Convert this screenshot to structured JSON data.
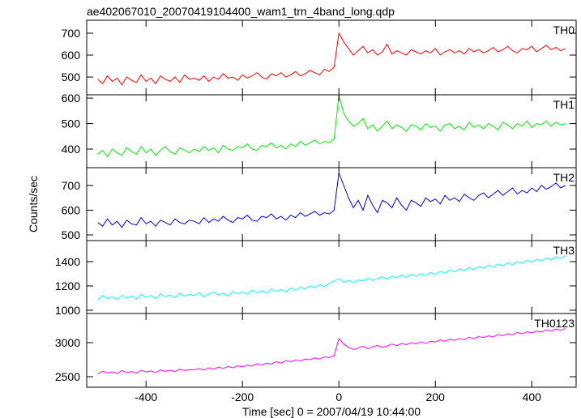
{
  "chart_data": {
    "type": "line",
    "title": "ae402067010_20070419104400_wam1_trn_4band_long.qdp",
    "xlabel": "Time [sec] 0 = 2007/04/19 10:44:00",
    "ylabel": "Counts/sec",
    "xlim": [
      -523,
      492
    ],
    "xticks": [
      -400,
      -200,
      0,
      200,
      400
    ],
    "x": [
      -500,
      -490,
      -480,
      -470,
      -460,
      -450,
      -440,
      -430,
      -420,
      -410,
      -400,
      -390,
      -380,
      -370,
      -360,
      -350,
      -340,
      -330,
      -320,
      -310,
      -300,
      -290,
      -280,
      -270,
      -260,
      -250,
      -240,
      -230,
      -220,
      -210,
      -200,
      -190,
      -180,
      -170,
      -160,
      -150,
      -140,
      -130,
      -120,
      -110,
      -100,
      -90,
      -80,
      -70,
      -60,
      -50,
      -40,
      -30,
      -20,
      -10,
      0,
      10,
      20,
      30,
      40,
      50,
      60,
      70,
      80,
      90,
      100,
      110,
      120,
      130,
      140,
      150,
      160,
      170,
      180,
      190,
      200,
      210,
      220,
      230,
      240,
      250,
      260,
      270,
      280,
      290,
      300,
      310,
      320,
      330,
      340,
      350,
      360,
      370,
      380,
      390,
      400,
      410,
      420,
      430,
      440,
      450,
      460,
      470
    ],
    "panels": [
      {
        "label": "TH0",
        "color": "#ff0000",
        "ylim": [
          419,
          759
        ],
        "yticks": [
          500,
          600,
          700
        ],
        "values": [
          490,
          470,
          505,
          480,
          495,
          465,
          500,
          485,
          475,
          510,
          480,
          495,
          470,
          505,
          490,
          480,
          500,
          475,
          510,
          490,
          495,
          485,
          505,
          480,
          500,
          490,
          515,
          495,
          500,
          485,
          510,
          495,
          505,
          520,
          500,
          490,
          515,
          505,
          520,
          500,
          510,
          525,
          505,
          515,
          530,
          520,
          510,
          535,
          525,
          545,
          700,
          660,
          630,
          600,
          620,
          640,
          610,
          625,
          600,
          615,
          650,
          605,
          620,
          610,
          600,
          625,
          615,
          605,
          620,
          610,
          630,
          600,
          615,
          625,
          610,
          620,
          605,
          630,
          615,
          625,
          610,
          620,
          635,
          615,
          625,
          640,
          620,
          610,
          630,
          625,
          640,
          615,
          630,
          645,
          625,
          635,
          620,
          630
        ]
      },
      {
        "label": "TH1",
        "color": "#00ee00",
        "ylim": [
          327,
          613
        ],
        "yticks": [
          400,
          500,
          600
        ],
        "values": [
          380,
          395,
          370,
          400,
          385,
          375,
          405,
          390,
          380,
          410,
          385,
          400,
          375,
          395,
          410,
          390,
          380,
          405,
          395,
          385,
          400,
          390,
          410,
          395,
          405,
          385,
          415,
          400,
          395,
          410,
          405,
          420,
          400,
          395,
          415,
          410,
          425,
          405,
          415,
          400,
          420,
          410,
          430,
          415,
          425,
          435,
          420,
          430,
          425,
          440,
          610,
          540,
          510,
          490,
          500,
          520,
          480,
          495,
          470,
          490,
          510,
          480,
          495,
          485,
          470,
          495,
          490,
          475,
          500,
          485,
          490,
          470,
          495,
          500,
          480,
          490,
          475,
          505,
          485,
          495,
          480,
          500,
          490,
          475,
          505,
          495,
          480,
          500,
          490,
          510,
          485,
          500,
          495,
          510,
          490,
          505,
          495,
          500
        ]
      },
      {
        "label": "TH2",
        "color": "#0000ee",
        "ylim": [
          477,
          772
        ],
        "yticks": [
          500,
          600,
          700
        ],
        "values": [
          550,
          535,
          565,
          540,
          555,
          530,
          560,
          545,
          540,
          570,
          545,
          555,
          535,
          560,
          550,
          540,
          565,
          550,
          545,
          560,
          555,
          545,
          570,
          550,
          565,
          555,
          575,
          560,
          550,
          570,
          565,
          580,
          560,
          555,
          575,
          570,
          585,
          565,
          575,
          560,
          580,
          570,
          590,
          575,
          585,
          595,
          580,
          590,
          585,
          600,
          750,
          700,
          650,
          610,
          640,
          600,
          660,
          620,
          590,
          640,
          630,
          610,
          650,
          620,
          600,
          640,
          630,
          615,
          650,
          635,
          645,
          625,
          660,
          640,
          650,
          635,
          665,
          650,
          640,
          660,
          670,
          650,
          665,
          680,
          660,
          675,
          690,
          665,
          680,
          670,
          690,
          675,
          700,
          685,
          695,
          710,
          690,
          700
        ]
      },
      {
        "label": "TH3",
        "color": "#00ffff",
        "ylim": [
          973,
          1573
        ],
        "yticks": [
          1000,
          1200,
          1400
        ],
        "values": [
          1080,
          1120,
          1095,
          1110,
          1085,
          1125,
          1100,
          1115,
          1090,
          1130,
          1105,
          1120,
          1095,
          1135,
          1110,
          1125,
          1100,
          1140,
          1115,
          1130,
          1120,
          1145,
          1110,
          1135,
          1150,
          1125,
          1140,
          1115,
          1155,
          1135,
          1150,
          1130,
          1165,
          1145,
          1160,
          1140,
          1175,
          1155,
          1170,
          1150,
          1180,
          1165,
          1190,
          1175,
          1200,
          1185,
          1210,
          1195,
          1220,
          1240,
          1260,
          1230,
          1245,
          1225,
          1250,
          1240,
          1265,
          1245,
          1260,
          1275,
          1255,
          1280,
          1265,
          1290,
          1270,
          1295,
          1280,
          1300,
          1285,
          1310,
          1295,
          1320,
          1305,
          1330,
          1315,
          1340,
          1325,
          1350,
          1335,
          1360,
          1345,
          1370,
          1355,
          1380,
          1365,
          1390,
          1375,
          1400,
          1385,
          1410,
          1395,
          1420,
          1405,
          1430,
          1415,
          1440,
          1425,
          1450
        ]
      },
      {
        "label": "TH0123",
        "color": "#ff00ff",
        "ylim": [
          2345,
          3429
        ],
        "yticks": [
          2500,
          3000
        ],
        "values": [
          2540,
          2580,
          2555,
          2570,
          2545,
          2590,
          2560,
          2575,
          2550,
          2595,
          2570,
          2585,
          2560,
          2600,
          2580,
          2595,
          2575,
          2610,
          2590,
          2605,
          2600,
          2620,
          2595,
          2630,
          2610,
          2640,
          2620,
          2650,
          2630,
          2660,
          2645,
          2670,
          2655,
          2690,
          2670,
          2700,
          2685,
          2720,
          2700,
          2735,
          2720,
          2745,
          2730,
          2760,
          2750,
          2775,
          2760,
          2790,
          2780,
          2810,
          3060,
          2980,
          2930,
          2900,
          2920,
          2950,
          2910,
          2940,
          2960,
          2930,
          2950,
          2980,
          2955,
          2990,
          2970,
          3000,
          2985,
          3010,
          2990,
          3020,
          3010,
          3040,
          3020,
          3050,
          3035,
          3060,
          3045,
          3080,
          3060,
          3090,
          3075,
          3100,
          3085,
          3120,
          3100,
          3130,
          3115,
          3150,
          3130,
          3160,
          3145,
          3170,
          3155,
          3190,
          3170,
          3200,
          3180,
          3210
        ]
      }
    ]
  }
}
